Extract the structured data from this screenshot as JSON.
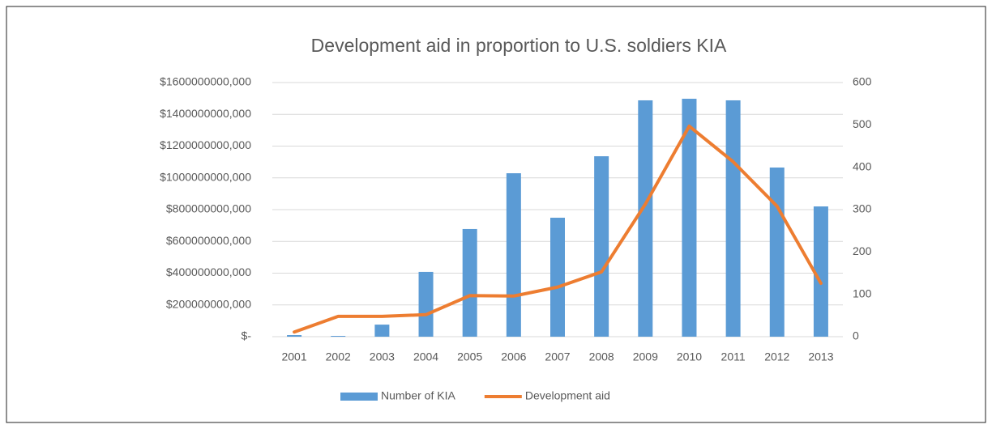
{
  "chart_data": {
    "type": "bar_line",
    "title": "Development aid in proportion to U.S. soldiers KIA",
    "categories": [
      "2001",
      "2002",
      "2003",
      "2004",
      "2005",
      "2006",
      "2007",
      "2008",
      "2009",
      "2010",
      "2011",
      "2012",
      "2013"
    ],
    "series": [
      {
        "name": "Number of KIA",
        "type": "bar",
        "color": "#5b9bd5",
        "values": [
          10000000000,
          5000000000,
          76000000000,
          408000000000,
          678000000000,
          1029000000000,
          749000000000,
          1136000000000,
          1488000000000,
          1498000000000,
          1488000000000,
          1065000000000,
          820000000000
        ]
      },
      {
        "name": "Development aid",
        "type": "line",
        "axis": "y2",
        "color": "#ed7d31",
        "values": [
          11,
          48,
          48,
          52,
          97,
          96,
          117,
          153,
          313,
          497,
          413,
          308,
          126
        ]
      }
    ],
    "ylim": [
      0,
      1600000000000
    ],
    "yticks": [
      {
        "value": 0,
        "label": "$-"
      },
      {
        "value": 200000000000,
        "label": "$200000000,000"
      },
      {
        "value": 400000000000,
        "label": "$400000000,000"
      },
      {
        "value": 600000000000,
        "label": "$600000000,000"
      },
      {
        "value": 800000000000,
        "label": "$800000000,000"
      },
      {
        "value": 1000000000000,
        "label": "$1000000000,000"
      },
      {
        "value": 1200000000000,
        "label": "$1200000000,000"
      },
      {
        "value": 1400000000000,
        "label": "$1400000000,000"
      },
      {
        "value": 1600000000000,
        "label": "$1600000000,000"
      }
    ],
    "y2lim": [
      0,
      600
    ],
    "y2ticks": [
      0,
      100,
      200,
      300,
      400,
      500,
      600
    ],
    "grid": true,
    "legend": "bottom"
  }
}
